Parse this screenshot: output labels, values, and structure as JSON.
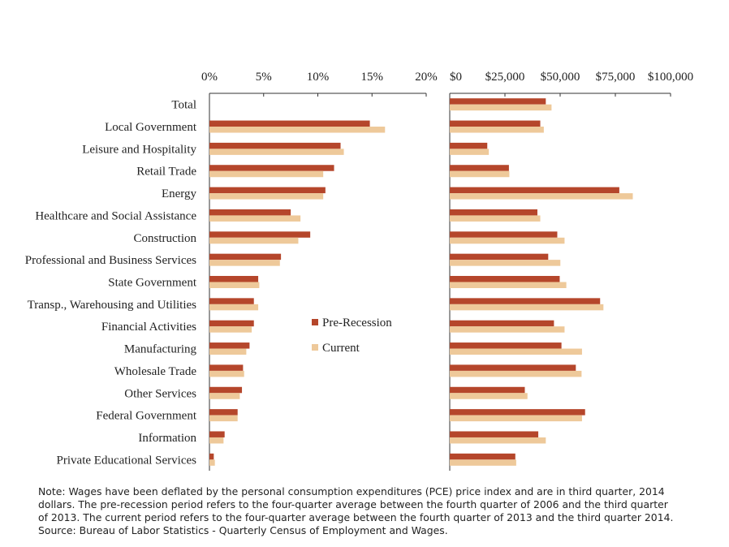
{
  "chart_data": [
    {
      "type": "bar",
      "orientation": "horizontal",
      "categories": [
        "Total",
        "Local Government",
        "Leisure and Hospitality",
        "Retail Trade",
        "Energy",
        "Healthcare and Social Assistance",
        "Construction",
        "Professional and Business Services",
        "State Government",
        "Transp., Warehousing and Utilities",
        "Financial Activities",
        "Manufacturing",
        "Wholesale Trade",
        "Other Services",
        "Federal Government",
        "Information",
        "Private Educational Services"
      ],
      "series": [
        {
          "name": "Pre-Recession",
          "color": "#b5462b",
          "values": [
            0,
            14.8,
            12.1,
            11.5,
            10.7,
            7.5,
            9.3,
            6.6,
            4.5,
            4.1,
            4.1,
            3.7,
            3.1,
            3.0,
            2.6,
            1.4,
            0.4
          ]
        },
        {
          "name": "Current",
          "color": "#eec99a",
          "values": [
            0,
            16.2,
            12.4,
            10.5,
            10.5,
            8.4,
            8.2,
            6.5,
            4.6,
            4.5,
            3.9,
            3.4,
            3.2,
            2.8,
            2.6,
            1.3,
            0.5
          ]
        }
      ],
      "xlim": [
        0,
        20
      ],
      "ticks": [
        "0%",
        "5%",
        "10%",
        "15%",
        "20%"
      ]
    },
    {
      "type": "bar",
      "orientation": "horizontal",
      "categories": [
        "Total",
        "Local Government",
        "Leisure and Hospitality",
        "Retail Trade",
        "Energy",
        "Healthcare and Social Assistance",
        "Construction",
        "Professional and Business Services",
        "State Government",
        "Transp., Warehousing and Utilities",
        "Financial Activities",
        "Manufacturing",
        "Wholesale Trade",
        "Other Services",
        "Federal Government",
        "Information",
        "Private Educational Services"
      ],
      "series": [
        {
          "name": "Pre-Recession",
          "color": "#b5462b",
          "values": [
            43500,
            41000,
            17000,
            26800,
            76800,
            39700,
            48700,
            44600,
            49800,
            68100,
            47200,
            50600,
            57100,
            34000,
            61300,
            40100,
            29700
          ]
        },
        {
          "name": "Current",
          "color": "#eec99a",
          "values": [
            46100,
            42600,
            17700,
            27000,
            82900,
            41000,
            52000,
            50100,
            52800,
            69600,
            52000,
            59900,
            59700,
            35200,
            59900,
            43500,
            30100
          ]
        }
      ],
      "xlim": [
        0,
        100000
      ],
      "ticks": [
        "$0",
        "$25,000",
        "$50,000",
        "$75,000",
        "$100,000"
      ]
    }
  ],
  "legend": {
    "items": [
      {
        "label": "Pre-Recession",
        "color": "#b5462b"
      },
      {
        "label": "Current",
        "color": "#eec99a"
      }
    ]
  },
  "note": {
    "line1": "Note: Wages have been deflated by the personal consumption expenditures (PCE) price index and are in third quarter, 2014",
    "line2": "dollars. The pre-recession period refers to the four-quarter average between the fourth quarter of 2006 and the third quarter",
    "line3": "of 2013. The current period refers to the four-quarter average between the fourth quarter of 2013 and the third quarter 2014.",
    "line4": "Source: Bureau of Labor Statistics - Quarterly Census of Employment and Wages."
  }
}
